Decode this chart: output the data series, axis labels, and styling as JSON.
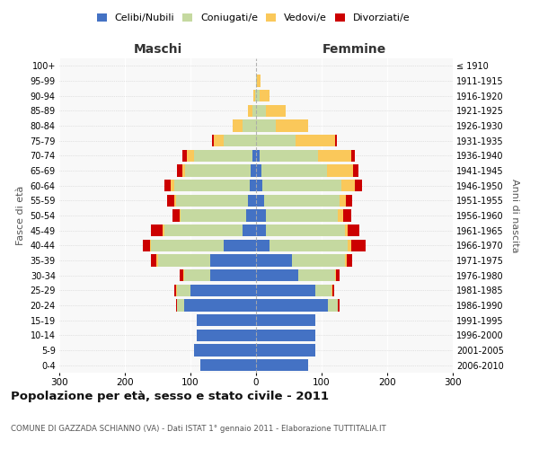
{
  "age_groups": [
    "0-4",
    "5-9",
    "10-14",
    "15-19",
    "20-24",
    "25-29",
    "30-34",
    "35-39",
    "40-44",
    "45-49",
    "50-54",
    "55-59",
    "60-64",
    "65-69",
    "70-74",
    "75-79",
    "80-84",
    "85-89",
    "90-94",
    "95-99",
    "100+"
  ],
  "birth_years": [
    "2006-2010",
    "2001-2005",
    "1996-2000",
    "1991-1995",
    "1986-1990",
    "1981-1985",
    "1976-1980",
    "1971-1975",
    "1966-1970",
    "1961-1965",
    "1956-1960",
    "1951-1955",
    "1946-1950",
    "1941-1945",
    "1936-1940",
    "1931-1935",
    "1926-1930",
    "1921-1925",
    "1916-1920",
    "1911-1915",
    "≤ 1910"
  ],
  "males": {
    "celibi": [
      85,
      95,
      90,
      90,
      110,
      100,
      70,
      70,
      50,
      20,
      15,
      12,
      10,
      8,
      5,
      0,
      0,
      0,
      0,
      0,
      0
    ],
    "coniugati": [
      0,
      0,
      0,
      0,
      10,
      20,
      40,
      80,
      110,
      120,
      100,
      110,
      115,
      100,
      90,
      50,
      20,
      5,
      2,
      0,
      0
    ],
    "vedovi": [
      0,
      0,
      0,
      0,
      0,
      2,
      1,
      2,
      2,
      2,
      2,
      3,
      5,
      5,
      10,
      15,
      15,
      8,
      2,
      0,
      0
    ],
    "divorziati": [
      0,
      0,
      0,
      0,
      2,
      2,
      5,
      8,
      10,
      18,
      10,
      10,
      10,
      8,
      8,
      2,
      0,
      0,
      0,
      0,
      0
    ]
  },
  "females": {
    "nubili": [
      80,
      90,
      90,
      90,
      110,
      90,
      65,
      55,
      20,
      15,
      15,
      12,
      10,
      8,
      5,
      0,
      0,
      0,
      0,
      0,
      0
    ],
    "coniugate": [
      0,
      0,
      0,
      0,
      15,
      25,
      55,
      80,
      120,
      120,
      110,
      115,
      120,
      100,
      90,
      60,
      30,
      15,
      5,
      2,
      0
    ],
    "vedove": [
      0,
      0,
      0,
      0,
      0,
      2,
      2,
      3,
      5,
      5,
      8,
      10,
      20,
      40,
      50,
      60,
      50,
      30,
      15,
      5,
      0
    ],
    "divorziate": [
      0,
      0,
      0,
      0,
      2,
      2,
      5,
      8,
      22,
      18,
      12,
      10,
      12,
      8,
      5,
      3,
      0,
      0,
      0,
      0,
      0
    ]
  },
  "colors": {
    "celibi": "#4472C4",
    "coniugati": "#C5D9A0",
    "vedovi": "#FAC85A",
    "divorziati": "#CC0000"
  },
  "xlim": 300,
  "title": "Popolazione per età, sesso e stato civile - 2011",
  "subtitle": "COMUNE DI GAZZADA SCHIANNO (VA) - Dati ISTAT 1° gennaio 2011 - Elaborazione TUTTITALIA.IT",
  "xlabel_left": "Maschi",
  "xlabel_right": "Femmine",
  "ylabel": "Fasce di età",
  "ylabel_right": "Anni di nascita"
}
